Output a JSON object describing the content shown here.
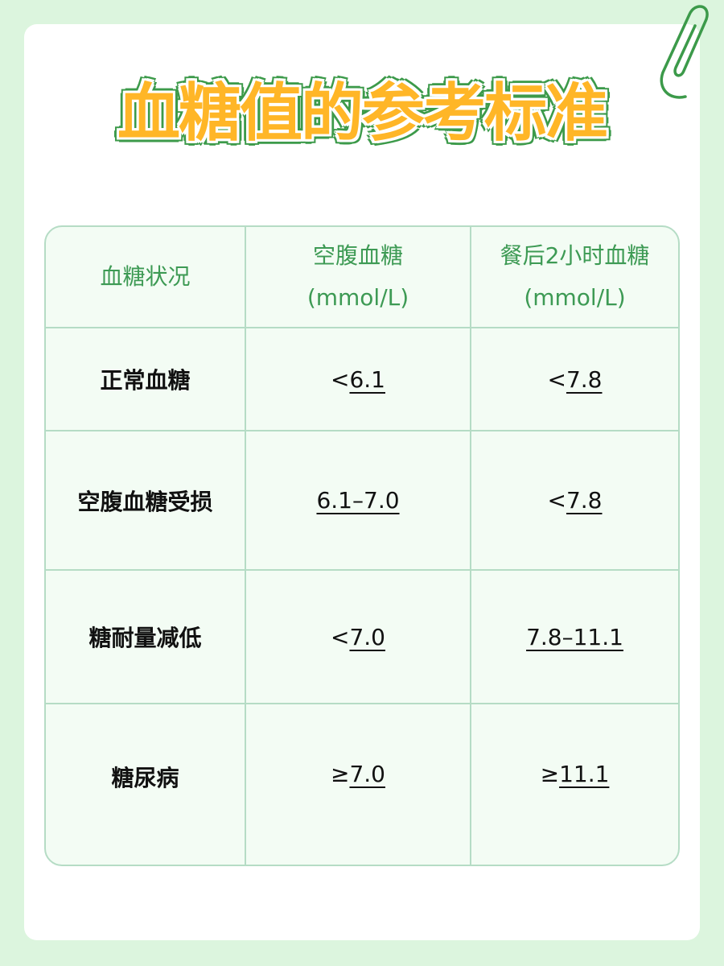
{
  "title": "血糖值的参考标准",
  "colors": {
    "background": "#dcf5de",
    "title_fill": "#ffb627",
    "title_outline": "#3c9a4a",
    "header_text": "#3d9a54",
    "table_border": "#b5dcc5",
    "table_bg": "#f3fcf4"
  },
  "decoration": {
    "icon": "paperclip-icon"
  },
  "table": {
    "headers": [
      {
        "line1": "血糖状况",
        "line2": ""
      },
      {
        "line1": "空腹血糖",
        "line2": "(mmol/L)"
      },
      {
        "line1": "餐后2小时血糖",
        "line2": "(mmol/L)"
      }
    ],
    "rows": [
      {
        "status": "正常血糖",
        "fasting": {
          "prefix": "<",
          "value": "6.1"
        },
        "postprandial": {
          "prefix": "<",
          "value": "7.8"
        }
      },
      {
        "status": "空腹血糖受损",
        "fasting": {
          "prefix": "",
          "value": "6.1–7.0"
        },
        "postprandial": {
          "prefix": "<",
          "value": "7.8"
        }
      },
      {
        "status": "糖耐量减低",
        "fasting": {
          "prefix": "<",
          "value": "7.0"
        },
        "postprandial": {
          "prefix": "",
          "value": "7.8–11.1"
        }
      },
      {
        "status": "糖尿病",
        "fasting": {
          "prefix": "≥",
          "value": "7.0"
        },
        "postprandial": {
          "prefix": "≥",
          "value": "11.1"
        }
      }
    ]
  }
}
